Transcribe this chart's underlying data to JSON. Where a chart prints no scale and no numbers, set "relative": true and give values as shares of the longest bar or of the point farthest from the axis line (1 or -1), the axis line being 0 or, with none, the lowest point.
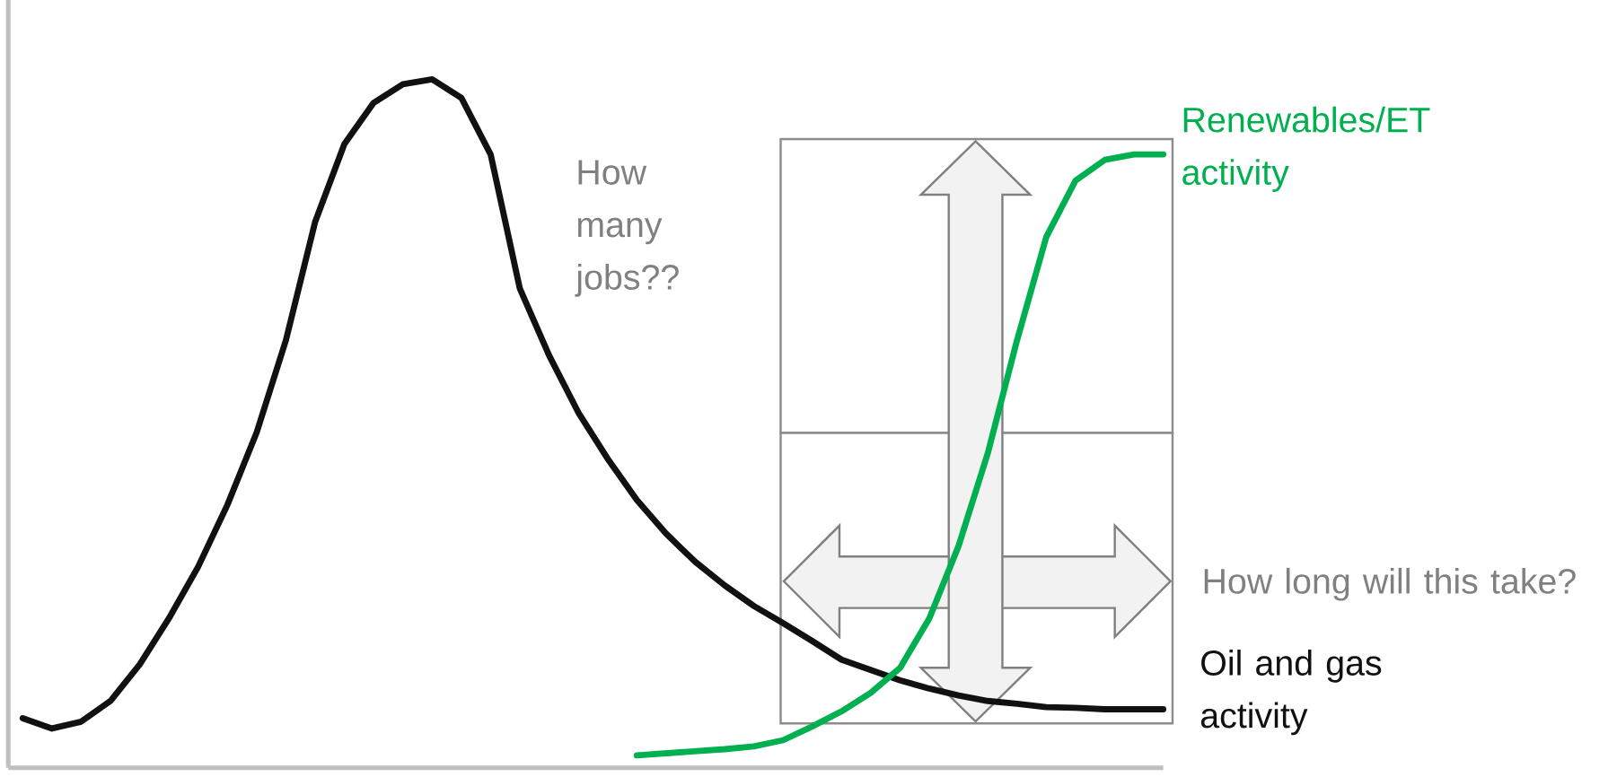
{
  "chart_data": {
    "type": "line",
    "relative": true,
    "categories": [
      null,
      null,
      null,
      null,
      null,
      null,
      null,
      null,
      null,
      null,
      null,
      null,
      null,
      null,
      null,
      null,
      null,
      null,
      null,
      null,
      null,
      null,
      null,
      null,
      null,
      null,
      null,
      null,
      null,
      null,
      null,
      null,
      null,
      null,
      null,
      null,
      null,
      null,
      null,
      null
    ],
    "series": [
      {
        "name": "Oil and gas activity",
        "color": "#111111",
        "values": [
          0.072,
          0.057,
          0.067,
          0.097,
          0.15,
          0.217,
          0.292,
          0.382,
          0.487,
          0.621,
          0.793,
          0.906,
          0.966,
          0.993,
          1.0,
          0.973,
          0.891,
          0.696,
          0.599,
          0.516,
          0.449,
          0.389,
          0.34,
          0.299,
          0.265,
          0.235,
          0.21,
          0.184,
          0.157,
          0.142,
          0.127,
          0.115,
          0.105,
          0.097,
          0.093,
          0.088,
          0.087,
          0.085,
          0.085,
          0.085
        ]
      },
      {
        "name": "Renewables/ET activity",
        "color": "#00b050",
        "values": [
          null,
          null,
          null,
          null,
          null,
          null,
          null,
          null,
          null,
          null,
          null,
          null,
          null,
          null,
          null,
          null,
          null,
          null,
          null,
          null,
          null,
          0.018,
          0.021,
          0.024,
          0.027,
          0.031,
          0.04,
          0.06,
          0.082,
          0.109,
          0.145,
          0.217,
          0.322,
          0.457,
          0.621,
          0.771,
          0.853,
          0.883,
          0.891,
          0.891
        ]
      }
    ],
    "annotations": [
      "How many jobs??",
      "How long will this take?"
    ]
  }
}
